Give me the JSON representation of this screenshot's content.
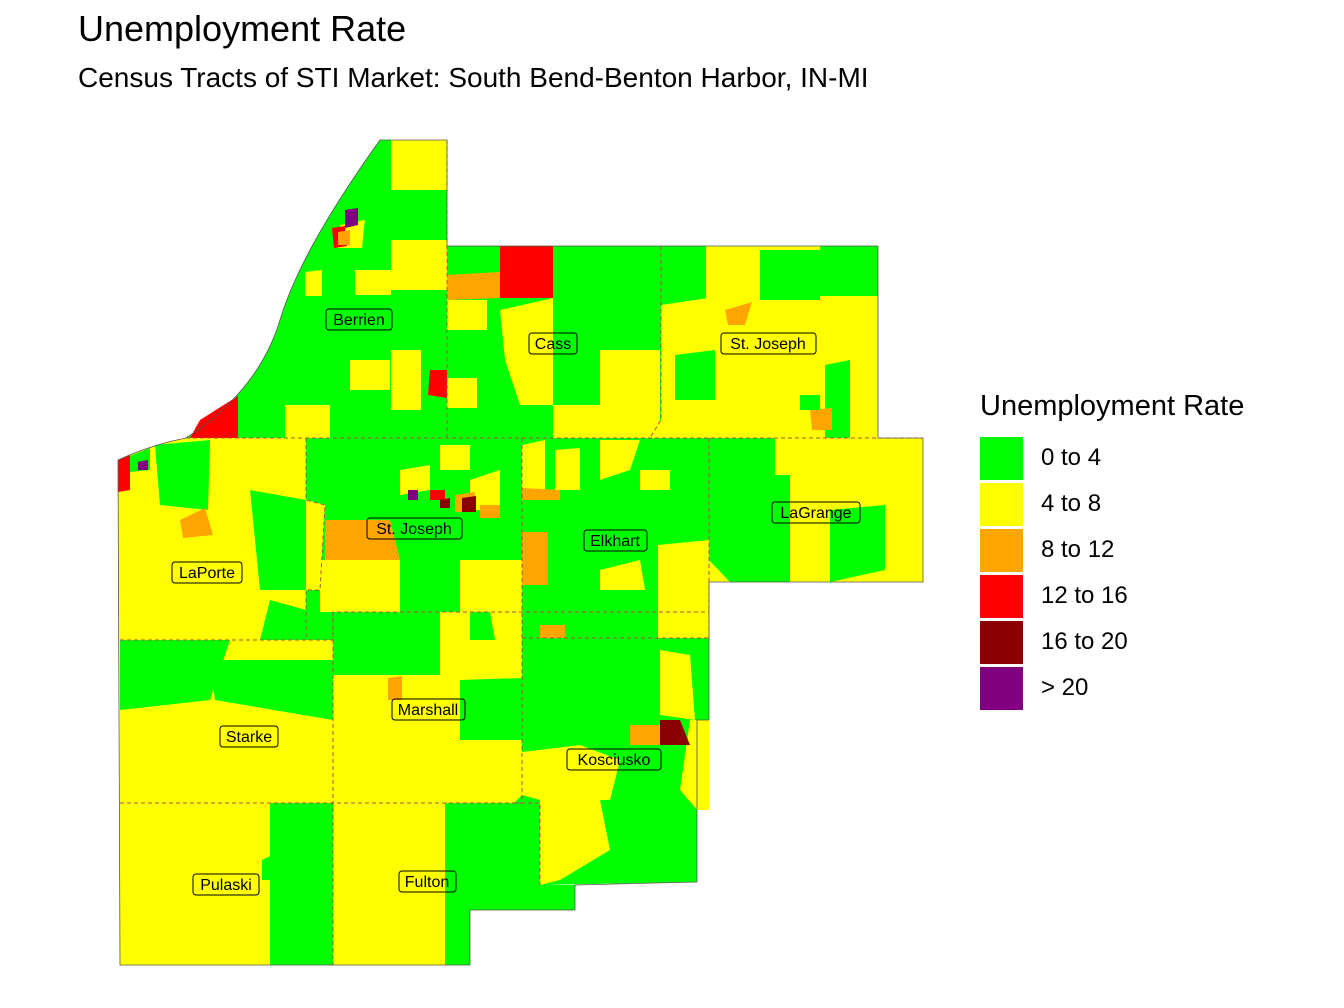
{
  "title": "Unemployment Rate",
  "subtitle": "Census Tracts of STI Market: South Bend-Benton Harbor, IN-MI",
  "legend": {
    "title": "Unemployment Rate",
    "items": [
      {
        "label": "0 to 4",
        "color": "#00FF00"
      },
      {
        "label": "4 to 8",
        "color": "#FFFF00"
      },
      {
        "label": "8 to 12",
        "color": "#FFA500"
      },
      {
        "label": "12 to 16",
        "color": "#FF0000"
      },
      {
        "label": "16 to 20",
        "color": "#8B0000"
      },
      {
        "label": "> 20",
        "color": "#800080"
      }
    ]
  },
  "counties": {
    "berrien": "Berrien",
    "cass": "Cass",
    "st_joseph_mi": "St. Joseph",
    "laporte": "LaPorte",
    "st_joseph_in": "St. Joseph",
    "elkhart": "Elkhart",
    "lagrange": "LaGrange",
    "starke": "Starke",
    "marshall": "Marshall",
    "kosciusko": "Kosciusko",
    "pulaski": "Pulaski",
    "fulton": "Fulton"
  }
}
